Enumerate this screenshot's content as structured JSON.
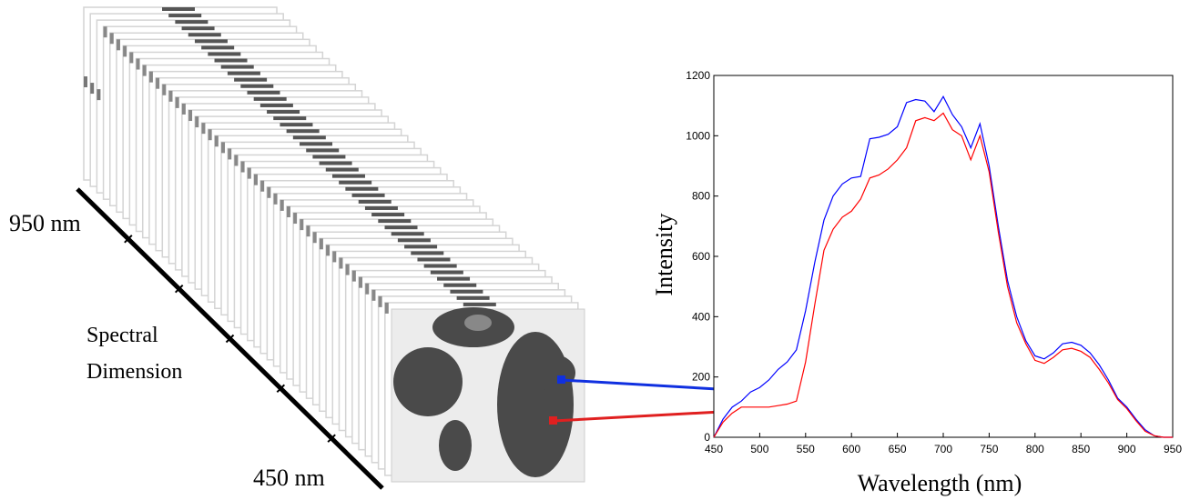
{
  "cube_labels": {
    "top": "950 nm",
    "side": [
      "Spectral",
      "Dimension"
    ],
    "bottom": "450 nm"
  },
  "chart_data": {
    "type": "line",
    "xlabel": "Wavelength (nm)",
    "ylabel": "Intensity",
    "x": [
      450,
      460,
      470,
      480,
      490,
      500,
      510,
      520,
      530,
      540,
      550,
      560,
      570,
      580,
      590,
      600,
      610,
      620,
      630,
      640,
      650,
      660,
      670,
      680,
      690,
      700,
      710,
      720,
      730,
      740,
      750,
      760,
      770,
      780,
      790,
      800,
      810,
      820,
      830,
      840,
      850,
      860,
      870,
      880,
      890,
      900,
      910,
      920,
      930,
      940,
      950
    ],
    "series": [
      {
        "color": "#0000ff",
        "values": [
          0,
          60,
          100,
          120,
          150,
          165,
          190,
          225,
          250,
          290,
          420,
          580,
          720,
          800,
          840,
          860,
          865,
          990,
          995,
          1005,
          1030,
          1110,
          1120,
          1115,
          1080,
          1130,
          1070,
          1030,
          960,
          1040,
          900,
          700,
          520,
          400,
          320,
          270,
          260,
          280,
          310,
          315,
          305,
          280,
          240,
          190,
          130,
          100,
          60,
          25,
          5,
          0,
          0
        ]
      },
      {
        "color": "#ff0000",
        "values": [
          0,
          50,
          80,
          100,
          100,
          100,
          100,
          105,
          110,
          120,
          250,
          440,
          620,
          690,
          730,
          750,
          790,
          860,
          870,
          890,
          920,
          960,
          1050,
          1060,
          1050,
          1075,
          1020,
          1000,
          920,
          1000,
          880,
          680,
          500,
          380,
          310,
          255,
          245,
          265,
          290,
          295,
          285,
          265,
          225,
          180,
          125,
          95,
          55,
          20,
          5,
          0,
          0
        ]
      }
    ],
    "xlim": [
      450,
      950
    ],
    "xticks": [
      450,
      500,
      550,
      600,
      650,
      700,
      750,
      800,
      850,
      900,
      950
    ],
    "ylim": [
      0,
      1200
    ],
    "yticks": [
      0,
      200,
      400,
      600,
      800,
      1000,
      1200
    ]
  }
}
